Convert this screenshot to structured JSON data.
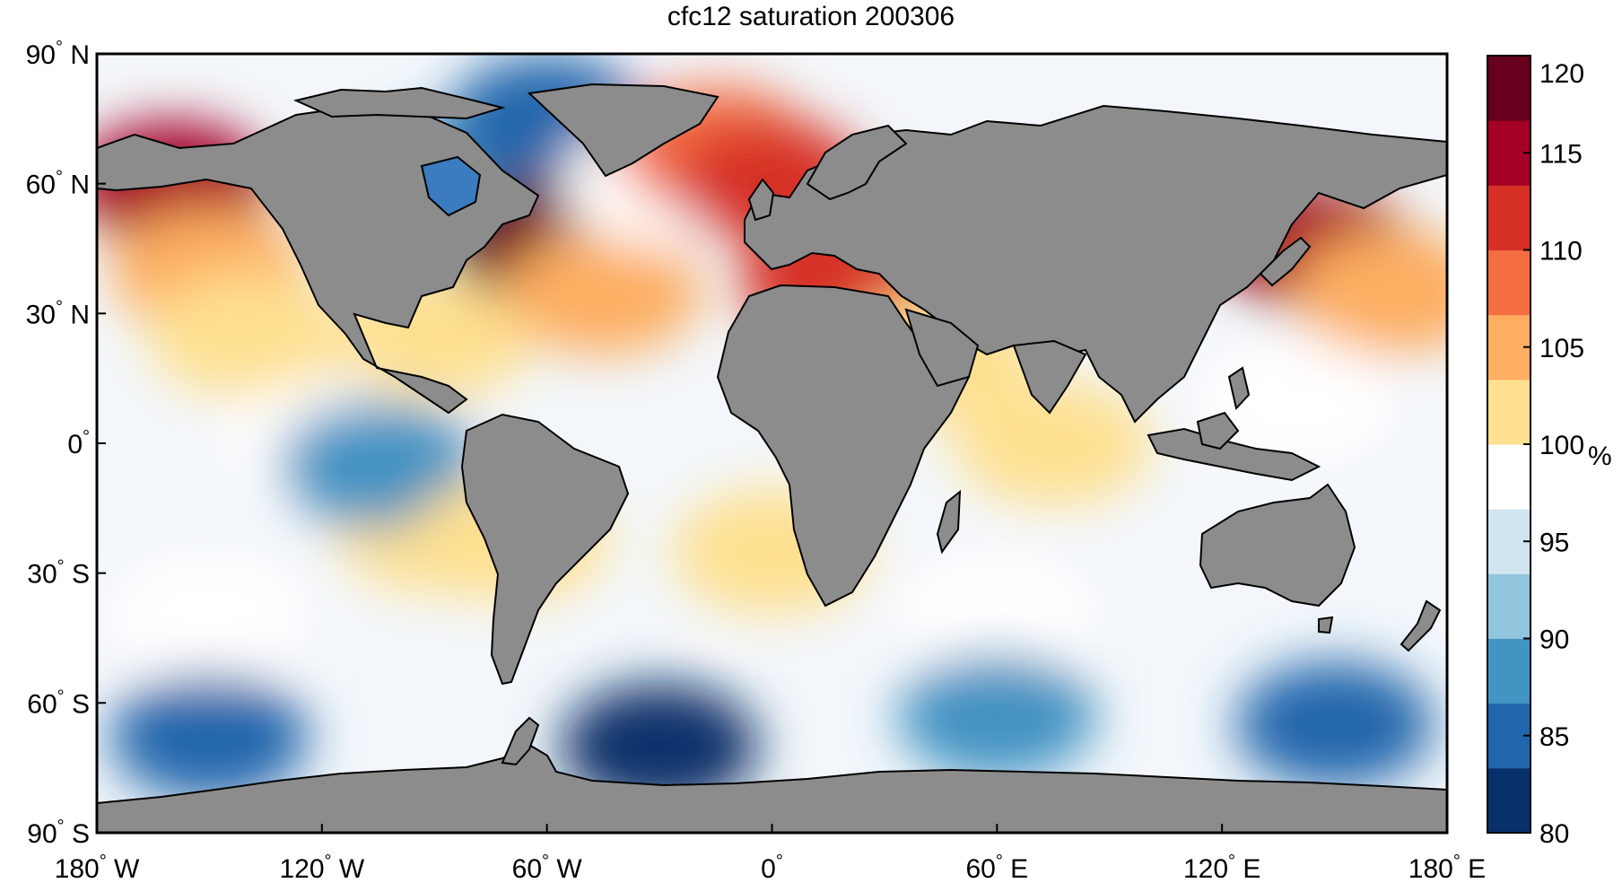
{
  "title": "cfc12 saturation 200306",
  "map": {
    "projection": "equirectangular",
    "lon_range": [
      -180,
      180
    ],
    "lat_range": [
      -90,
      90
    ],
    "land_color": "#8c8c8c",
    "coast_color": "#000000",
    "lat_ticks": [
      {
        "value": 90,
        "label": "90",
        "hemi": "N"
      },
      {
        "value": 60,
        "label": "60",
        "hemi": "N"
      },
      {
        "value": 30,
        "label": "30",
        "hemi": "N"
      },
      {
        "value": 0,
        "label": "0",
        "hemi": ""
      },
      {
        "value": -30,
        "label": "30",
        "hemi": "S"
      },
      {
        "value": -60,
        "label": "60",
        "hemi": "S"
      },
      {
        "value": -90,
        "label": "90",
        "hemi": "S"
      }
    ],
    "lon_ticks": [
      {
        "value": -180,
        "label": "180",
        "hemi": "W"
      },
      {
        "value": -120,
        "label": "120",
        "hemi": "W"
      },
      {
        "value": -60,
        "label": "60",
        "hemi": "W"
      },
      {
        "value": 0,
        "label": "0",
        "hemi": ""
      },
      {
        "value": 60,
        "label": "60",
        "hemi": "E"
      },
      {
        "value": 120,
        "label": "120",
        "hemi": "E"
      },
      {
        "value": 180,
        "label": "180",
        "hemi": "E"
      }
    ],
    "degree_symbol": "°"
  },
  "colorbar": {
    "range": [
      80,
      120
    ],
    "ticks": [
      "80",
      "85",
      "90",
      "95",
      "100",
      "105",
      "110",
      "115",
      "120"
    ],
    "unit": "%",
    "colors": [
      "#08306b",
      "#2166ac",
      "#4393c3",
      "#92c5de",
      "#d1e5f0",
      "#ffffff",
      "#fee090",
      "#fdae61",
      "#f46d43",
      "#d73027",
      "#a50026",
      "#67001f"
    ]
  },
  "chart_data": {
    "type": "heatmap",
    "title": "cfc12 saturation 200306",
    "variable": "cfc12 saturation",
    "unit": "%",
    "value_range": [
      80,
      120
    ],
    "regions": [
      {
        "lon": -160,
        "lat": 60,
        "value": 115
      },
      {
        "lon": -150,
        "lat": 40,
        "value": 104
      },
      {
        "lon": -140,
        "lat": 25,
        "value": 103
      },
      {
        "lon": -120,
        "lat": 0,
        "value": 99
      },
      {
        "lon": -90,
        "lat": 25,
        "value": 103
      },
      {
        "lon": -85,
        "lat": 60,
        "value": 88
      },
      {
        "lon": -60,
        "lat": 75,
        "value": 86
      },
      {
        "lon": -60,
        "lat": 47,
        "value": 117
      },
      {
        "lon": -45,
        "lat": 35,
        "value": 104
      },
      {
        "lon": -30,
        "lat": 60,
        "value": 98
      },
      {
        "lon": -15,
        "lat": 68,
        "value": 108
      },
      {
        "lon": 0,
        "lat": 60,
        "value": 110
      },
      {
        "lon": 18,
        "lat": 37,
        "value": 110
      },
      {
        "lon": 45,
        "lat": 20,
        "value": 103
      },
      {
        "lon": 75,
        "lat": 0,
        "value": 100
      },
      {
        "lon": 145,
        "lat": 45,
        "value": 114
      },
      {
        "lon": 165,
        "lat": 35,
        "value": 104
      },
      {
        "lon": 140,
        "lat": 10,
        "value": 99
      },
      {
        "lon": -90,
        "lat": -20,
        "value": 100
      },
      {
        "lon": -105,
        "lat": -5,
        "value": 88
      },
      {
        "lon": -70,
        "lat": -22,
        "value": 103
      },
      {
        "lon": 0,
        "lat": -25,
        "value": 103
      },
      {
        "lon": 60,
        "lat": -40,
        "value": 97
      },
      {
        "lon": -150,
        "lat": -40,
        "value": 97
      },
      {
        "lon": -150,
        "lat": -68,
        "value": 86
      },
      {
        "lon": -30,
        "lat": -70,
        "value": 80
      },
      {
        "lon": 60,
        "lat": -63,
        "value": 87
      },
      {
        "lon": 150,
        "lat": -65,
        "value": 86
      }
    ]
  }
}
